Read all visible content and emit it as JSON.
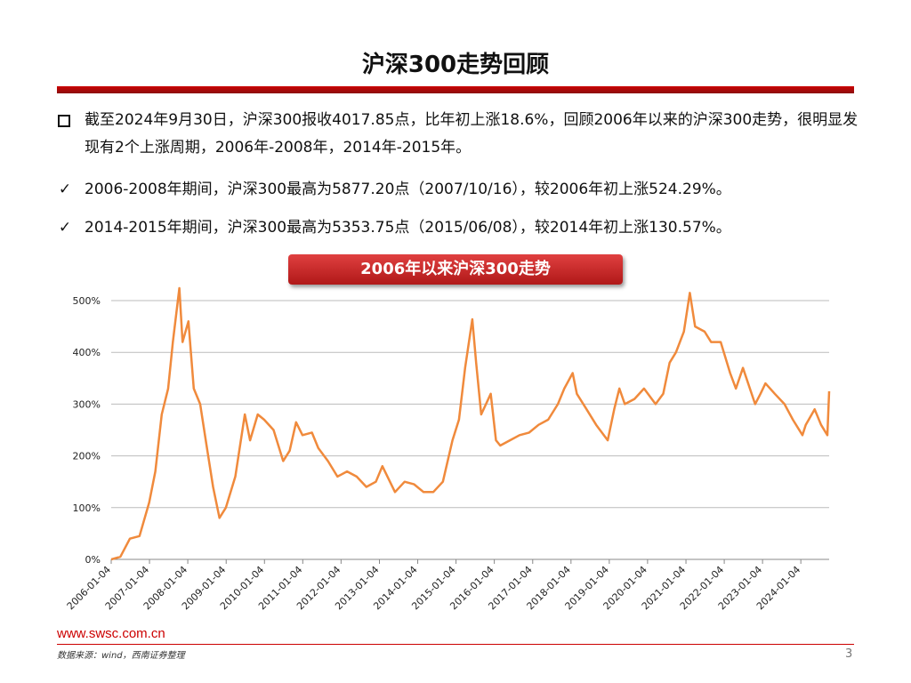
{
  "header": {
    "title": "沪深300走势回顾"
  },
  "bullets": [
    {
      "marker": "",
      "text": "截至2024年9月30日，沪深300报收4017.85点，比年初上涨18.6%，回顾2006年以来的沪深300走势，很明显发现有2个上涨周期，2006年-2008年，2014年-2015年。"
    },
    {
      "marker": "✓",
      "text": "2006-2008年期间，沪深300最高为5877.20点（2007/10/16），较2006年初上涨524.29%。"
    },
    {
      "marker": "✓",
      "text": "2014-2015年期间，沪深300最高为5353.75点（2015/06/08），较2014年初上涨130.57%。"
    }
  ],
  "chart_data": {
    "type": "line",
    "title": "2006年以来沪深300走势",
    "x": [
      "2006-01-04",
      "2006-04-01",
      "2006-07-01",
      "2006-10-01",
      "2007-01-01",
      "2007-03-01",
      "2007-05-01",
      "2007-07-01",
      "2007-08-15",
      "2007-10-16",
      "2007-11-15",
      "2008-01-10",
      "2008-03-01",
      "2008-05-01",
      "2008-07-01",
      "2008-09-01",
      "2008-11-01",
      "2009-01-01",
      "2009-04-01",
      "2009-07-01",
      "2009-08-20",
      "2009-11-01",
      "2010-01-01",
      "2010-04-01",
      "2010-07-01",
      "2010-09-01",
      "2010-11-01",
      "2011-01-01",
      "2011-04-01",
      "2011-06-01",
      "2011-09-01",
      "2011-12-01",
      "2012-03-01",
      "2012-06-01",
      "2012-09-01",
      "2012-12-01",
      "2013-02-01",
      "2013-06-01",
      "2013-09-01",
      "2013-12-01",
      "2014-03-01",
      "2014-06-01",
      "2014-09-01",
      "2014-12-01",
      "2015-02-01",
      "2015-04-01",
      "2015-06-08",
      "2015-07-15",
      "2015-09-01",
      "2015-12-01",
      "2016-01-20",
      "2016-03-01",
      "2016-06-01",
      "2016-09-01",
      "2016-12-01",
      "2017-03-01",
      "2017-06-01",
      "2017-09-01",
      "2017-11-01",
      "2018-01-20",
      "2018-03-01",
      "2018-06-01",
      "2018-09-01",
      "2018-12-20",
      "2019-02-20",
      "2019-04-10",
      "2019-06-01",
      "2019-09-01",
      "2019-12-01",
      "2020-03-20",
      "2020-06-01",
      "2020-08-01",
      "2020-10-01",
      "2020-12-15",
      "2021-02-10",
      "2021-04-01",
      "2021-07-01",
      "2021-09-01",
      "2021-12-01",
      "2022-03-01",
      "2022-04-25",
      "2022-07-01",
      "2022-10-25",
      "2022-12-15",
      "2023-02-01",
      "2023-05-01",
      "2023-08-01",
      "2023-10-20",
      "2024-01-20",
      "2024-02-20",
      "2024-05-15",
      "2024-07-15",
      "2024-09-13",
      "2024-09-30"
    ],
    "series": [
      {
        "name": "沪深300",
        "color": "#f08a3c",
        "values": [
          0,
          5,
          40,
          45,
          110,
          170,
          280,
          330,
          420,
          524,
          420,
          460,
          330,
          300,
          220,
          140,
          80,
          100,
          160,
          280,
          230,
          280,
          270,
          250,
          190,
          210,
          265,
          240,
          245,
          215,
          190,
          160,
          170,
          160,
          140,
          150,
          180,
          130,
          150,
          145,
          130,
          130,
          150,
          230,
          270,
          370,
          464,
          380,
          280,
          320,
          230,
          220,
          230,
          240,
          245,
          260,
          270,
          300,
          330,
          360,
          320,
          290,
          260,
          230,
          290,
          330,
          300,
          310,
          330,
          300,
          320,
          380,
          400,
          440,
          515,
          450,
          440,
          420,
          420,
          360,
          330,
          370,
          300,
          320,
          340,
          320,
          300,
          270,
          240,
          260,
          290,
          260,
          240,
          325
        ]
      }
    ],
    "xlim": [
      "2006-01-04",
      "2024-09-30"
    ],
    "xticks": [
      "2006-01-04",
      "2007-01-04",
      "2008-01-04",
      "2009-01-04",
      "2010-01-04",
      "2011-01-04",
      "2012-01-04",
      "2013-01-04",
      "2014-01-04",
      "2015-01-04",
      "2016-01-04",
      "2017-01-04",
      "2018-01-04",
      "2019-01-04",
      "2020-01-04",
      "2021-01-04",
      "2022-01-04",
      "2023-01-04",
      "2024-01-04"
    ],
    "ylim": [
      0,
      500
    ],
    "yticks": [
      {
        "value": 0,
        "label": "0%"
      },
      {
        "value": 100,
        "label": "100%"
      },
      {
        "value": 200,
        "label": "200%"
      },
      {
        "value": 300,
        "label": "300%"
      },
      {
        "value": 400,
        "label": "400%"
      },
      {
        "value": 500,
        "label": "500%"
      }
    ],
    "grid": true
  },
  "footer": {
    "site": "www.swsc.com.cn",
    "source": "数据来源：wind，西南证券整理",
    "page": "3"
  }
}
